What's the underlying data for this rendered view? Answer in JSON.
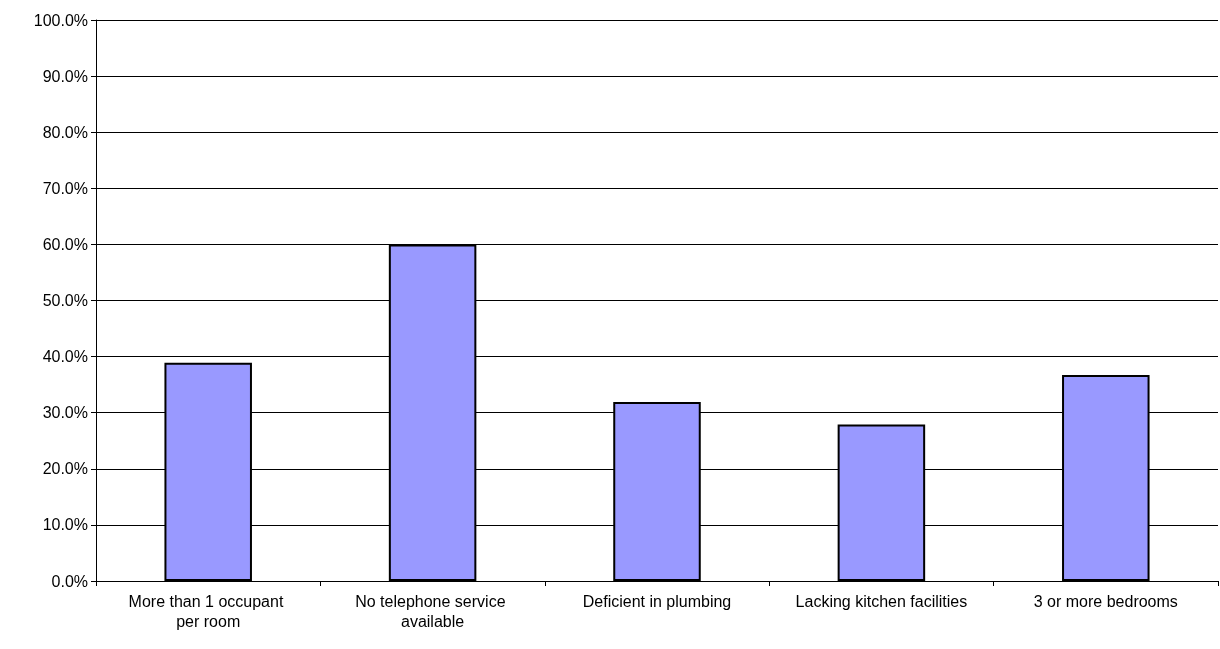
{
  "chart_data": {
    "type": "bar",
    "categories": [
      "More than 1 occupant per room",
      "No telephone service available",
      "Deficient in plumbing",
      "Lacking kitchen facilities",
      "3 or more bedrooms"
    ],
    "values": [
      38.9,
      60,
      31.9,
      27.9,
      36.7
    ],
    "color": "#9999ff",
    "ylim": [
      0,
      100
    ],
    "yticks": [
      {
        "value": 0,
        "label": "0.0%"
      },
      {
        "value": 10,
        "label": "10.0%"
      },
      {
        "value": 20,
        "label": "20.0%"
      },
      {
        "value": 30,
        "label": "30.0%"
      },
      {
        "value": 40,
        "label": "40.0%"
      },
      {
        "value": 50,
        "label": "50.0%"
      },
      {
        "value": 60,
        "label": "60.0%"
      },
      {
        "value": 70,
        "label": "70.0%"
      },
      {
        "value": 80,
        "label": "80.0%"
      },
      {
        "value": 90,
        "label": "90.0%"
      },
      {
        "value": 100,
        "label": "100.0%"
      }
    ],
    "grid": "y"
  }
}
